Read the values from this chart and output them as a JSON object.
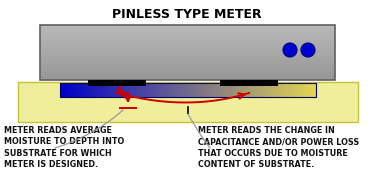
{
  "title": "PINLESS TYPE METER",
  "title_fontsize": 9,
  "title_fontweight": "bold",
  "bg_color": "#FFFFFF",
  "substrate_color": "#F0EE9A",
  "substrate_border": "#C8C040",
  "meter_color_top": "#B8B8B8",
  "meter_color_bot": "#888888",
  "meter_border": "#606060",
  "dot_color": "#0000CC",
  "arrow_color": "#CC0000",
  "callout_color": "#999999",
  "text_color": "#111111",
  "text_left": "METER READS AVERAGE\nMOISTURE TO DEPTH INTO\nSUBSTRATE FOR WHICH\nMETER IS DESIGNED.",
  "text_right": "METER READS THE CHANGE IN\nCAPACITANCE AND/OR POWER LOSS\nTHAT OCCURS DUE TO MOISTURE\nCONTENT OF SUBSTRATE.",
  "text_fontsize": 5.8
}
